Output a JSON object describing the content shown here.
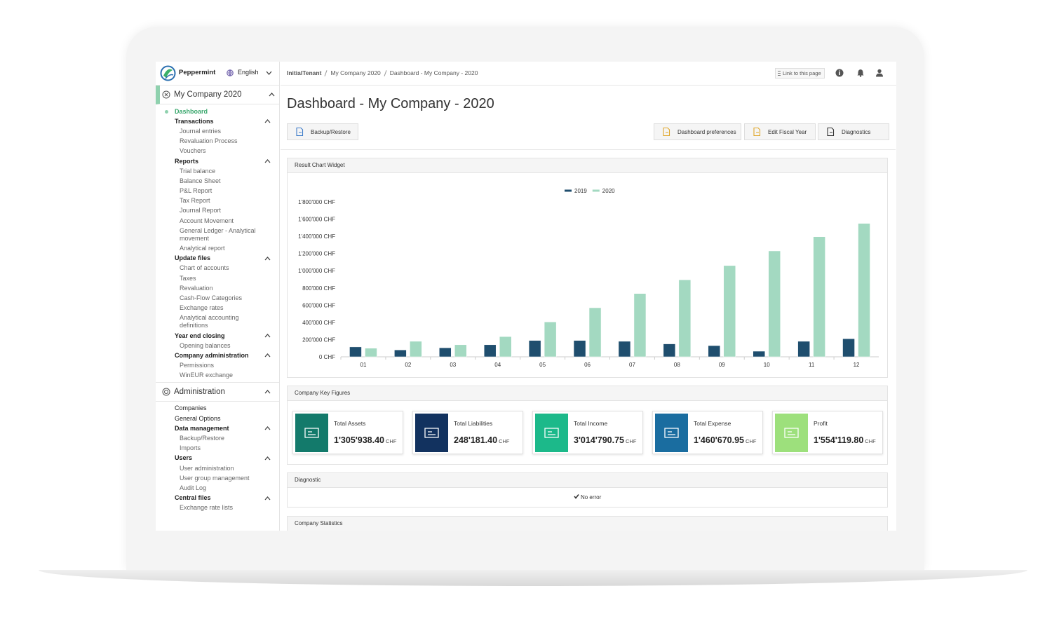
{
  "header": {
    "brand": "Peppermint",
    "language": "English",
    "breadcrumb": [
      "InitialTenant",
      "My Company 2020",
      "Dashboard - My Company - 2020"
    ],
    "link_button": "Link to this page"
  },
  "sidebar": {
    "sections": [
      {
        "title": "My Company 2020",
        "entries": [
          {
            "label": "Dashboard"
          },
          {
            "label": "Transactions",
            "items": [
              "Journal entries",
              "Revaluation Process",
              "Vouchers"
            ]
          },
          {
            "label": "Reports",
            "items": [
              "Trial balance",
              "Balance Sheet",
              "P&L Report",
              "Tax Report",
              "Journal Report",
              "Account Movement",
              "General Ledger - Analytical movement",
              "Analytical report"
            ]
          },
          {
            "label": "Update files",
            "items": [
              "Chart of accounts",
              "Taxes",
              "Revaluation",
              "Cash-Flow Categories",
              "Exchange rates",
              "Analytical accounting definitions"
            ]
          },
          {
            "label": "Year end closing",
            "items": [
              "Opening balances"
            ]
          },
          {
            "label": "Company administration",
            "items": [
              "Permissions",
              "WinEUR exchange"
            ]
          }
        ]
      },
      {
        "title": "Administration",
        "entries": [
          {
            "label": "Companies"
          },
          {
            "label": "General Options"
          },
          {
            "label": "Data management",
            "items": [
              "Backup/Restore",
              "Imports"
            ]
          },
          {
            "label": "Users",
            "items": [
              "User administration",
              "User group management",
              "Audit Log"
            ]
          },
          {
            "label": "Central files",
            "items": [
              "Exchange rate lists"
            ]
          }
        ]
      }
    ]
  },
  "page": {
    "title": "Dashboard - My Company - 2020",
    "buttons_left": [
      "Backup/Restore"
    ],
    "buttons_right": [
      "Dashboard preferences",
      "Edit Fiscal Year",
      "Diagnostics"
    ]
  },
  "chart_data": {
    "type": "bar",
    "title": "Result Chart Widget",
    "categories": [
      "01",
      "02",
      "03",
      "04",
      "05",
      "06",
      "07",
      "08",
      "09",
      "10",
      "11",
      "12"
    ],
    "series": [
      {
        "name": "2019",
        "color": "#1f4e6e",
        "values": [
          115000,
          80000,
          105000,
          140000,
          190000,
          190000,
          180000,
          150000,
          130000,
          65000,
          180000,
          210000
        ]
      },
      {
        "name": "2020",
        "color": "#a3d9c1",
        "values": [
          100000,
          180000,
          140000,
          235000,
          405000,
          570000,
          735000,
          895000,
          1060000,
          1230000,
          1395000,
          1550000
        ]
      }
    ],
    "ylim": [
      0,
      1800000
    ],
    "yticks": [
      {
        "value": 0,
        "label": "0 CHF"
      },
      {
        "value": 200000,
        "label": "200'000 CHF"
      },
      {
        "value": 400000,
        "label": "400'000 CHF"
      },
      {
        "value": 600000,
        "label": "600'000 CHF"
      },
      {
        "value": 800000,
        "label": "800'000 CHF"
      },
      {
        "value": 1000000,
        "label": "1'000'000 CHF"
      },
      {
        "value": 1200000,
        "label": "1'200'000 CHF"
      },
      {
        "value": 1400000,
        "label": "1'400'000 CHF"
      },
      {
        "value": 1600000,
        "label": "1'600'000 CHF"
      },
      {
        "value": 1800000,
        "label": "1'800'000 CHF"
      }
    ],
    "grid": false,
    "legend": "top"
  },
  "key_figures": {
    "title": "Company Key Figures",
    "cards": [
      {
        "label": "Total Assets",
        "value": "1'305'938.40",
        "currency": "CHF",
        "color": "#137a6b"
      },
      {
        "label": "Total Liabilities",
        "value": "248'181.40",
        "currency": "CHF",
        "color": "#12325f"
      },
      {
        "label": "Total Income",
        "value": "3'014'790.75",
        "currency": "CHF",
        "color": "#1cb98a"
      },
      {
        "label": "Total Expense",
        "value": "1'460'670.95",
        "currency": "CHF",
        "color": "#1a6da0"
      },
      {
        "label": "Profit",
        "value": "1'554'119.80",
        "currency": "CHF",
        "color": "#9de07c"
      }
    ]
  },
  "diagnostic": {
    "title": "Diagnostic",
    "message": "No error"
  },
  "statistics": {
    "title": "Company Statistics"
  }
}
